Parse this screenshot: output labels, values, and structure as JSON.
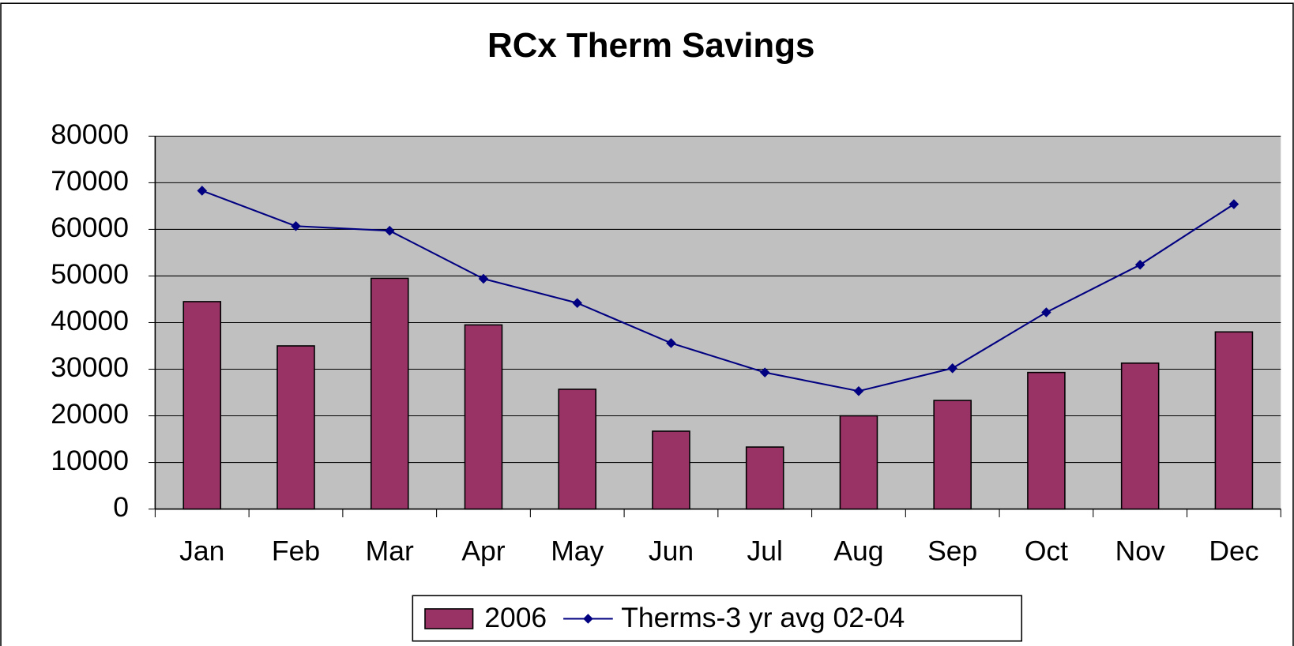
{
  "chart_data": {
    "type": "bar_line",
    "title": "RCx Therm Savings",
    "categories": [
      "Jan",
      "Feb",
      "Mar",
      "Apr",
      "May",
      "Jun",
      "Jul",
      "Aug",
      "Sep",
      "Oct",
      "Nov",
      "Dec"
    ],
    "series": [
      {
        "name": "2006",
        "type": "bar",
        "color": "#993366",
        "values": [
          44500,
          35000,
          49500,
          39500,
          25700,
          16700,
          13300,
          20000,
          23300,
          29300,
          31300,
          38000
        ]
      },
      {
        "name": "Therms-3 yr avg 02-04",
        "type": "line",
        "color": "#000080",
        "values": [
          68300,
          60700,
          59700,
          49400,
          44200,
          35600,
          29300,
          25300,
          30200,
          42200,
          52400,
          65400
        ]
      }
    ],
    "ylim": [
      0,
      80000
    ],
    "yticks": [
      0,
      10000,
      20000,
      30000,
      40000,
      50000,
      60000,
      70000,
      80000
    ],
    "grid": true,
    "legend": "bottom"
  }
}
